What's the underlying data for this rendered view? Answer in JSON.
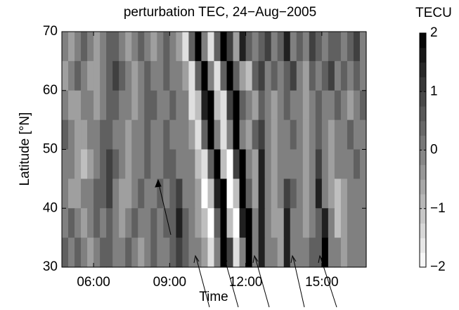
{
  "chart_data": {
    "type": "heatmap",
    "title": "perturbation TEC, 24−Aug−2005",
    "x_label": "Time",
    "y_label": "Latitude [°N]",
    "colorbar_label": "TECU",
    "xlim": [
      4.75,
      16.75
    ],
    "xticks": [
      {
        "value": 6,
        "label": "06:00"
      },
      {
        "value": 9,
        "label": "09:00"
      },
      {
        "value": 12,
        "label": "12:00"
      },
      {
        "value": 15,
        "label": "15:00"
      }
    ],
    "ylim": [
      30,
      70
    ],
    "yticks": [
      30,
      40,
      50,
      60,
      70
    ],
    "clim": [
      -2,
      2
    ],
    "cticks": [
      {
        "value": -2,
        "label": "−2"
      },
      {
        "value": -1,
        "label": "−1"
      },
      0,
      1,
      2
    ],
    "colormap": "gray",
    "x": [
      4.875,
      5.125,
      5.375,
      5.625,
      5.875,
      6.125,
      6.375,
      6.625,
      6.875,
      7.125,
      7.375,
      7.625,
      7.875,
      8.125,
      8.375,
      8.625,
      8.875,
      9.125,
      9.375,
      9.625,
      9.875,
      10.125,
      10.375,
      10.625,
      10.875,
      11.125,
      11.375,
      11.625,
      11.875,
      12.125,
      12.375,
      12.625,
      12.875,
      13.125,
      13.375,
      13.625,
      13.875,
      14.125,
      14.375,
      14.625,
      14.875,
      15.125,
      15.375,
      15.625,
      15.875,
      16.125,
      16.375,
      16.625
    ],
    "y": [
      67.5,
      62.5,
      57.5,
      52.5,
      47.5,
      42.5,
      37.5,
      32.5
    ],
    "z": [
      [
        0,
        -0.5,
        0,
        0.5,
        0,
        -0.5,
        0,
        0.5,
        0.5,
        0,
        -0.5,
        0,
        0.5,
        0,
        -0.5,
        0,
        0.5,
        0,
        -0.5,
        -1.5,
        0.5,
        2,
        0,
        -1.5,
        0.5,
        2,
        1,
        -0.5,
        1.5,
        0.5,
        0,
        0.5,
        1,
        0,
        0.5,
        1.5,
        0,
        0.5,
        0,
        1,
        0.5,
        0,
        0.5,
        0.5,
        0,
        0.5,
        1,
        0
      ],
      [
        -0.5,
        0,
        0.5,
        0,
        -0.5,
        -0.5,
        0,
        0.5,
        1,
        0.5,
        0,
        -0.5,
        0,
        0.5,
        0,
        0,
        0.5,
        0,
        0,
        -0.5,
        -1.5,
        0.5,
        2,
        0,
        -1.5,
        0.5,
        2,
        0.5,
        -0.5,
        -1,
        0.5,
        1,
        0,
        0.5,
        0,
        0.5,
        1,
        0,
        -0.5,
        0.5,
        0,
        0.5,
        1,
        0,
        0.5,
        0,
        0.5,
        0
      ],
      [
        0,
        -0.5,
        -0.5,
        0,
        0,
        -0.5,
        0,
        0.5,
        0.5,
        0,
        0,
        -0.5,
        0,
        0.5,
        0.5,
        0,
        0,
        0.5,
        0,
        0,
        -1.5,
        -1,
        1.5,
        2,
        -1,
        -1.5,
        1,
        2,
        0.5,
        0,
        -0.5,
        0.5,
        0,
        -0.5,
        0,
        0.5,
        0,
        0,
        -0.5,
        0,
        0.5,
        0,
        0,
        0.5,
        0,
        -0.5,
        0,
        0.5
      ],
      [
        0.5,
        0,
        -0.5,
        -0.5,
        0,
        0,
        0.5,
        0.5,
        0,
        0,
        -0.5,
        0,
        0,
        0.5,
        0,
        0,
        0.5,
        0,
        0,
        0,
        -0.5,
        -1.5,
        0.5,
        2,
        0,
        -1.5,
        0,
        2,
        0,
        -0.5,
        0.5,
        1,
        0,
        -0.5,
        0,
        0,
        0.5,
        0,
        -0.5,
        0,
        0.5,
        0,
        -0.5,
        0,
        0,
        0.5,
        0,
        0
      ],
      [
        0,
        0,
        -0.5,
        -1,
        -0.5,
        0,
        0.5,
        1,
        0.5,
        0,
        -0.5,
        0,
        0,
        0.5,
        0,
        0,
        0.5,
        0.5,
        0,
        0,
        0,
        -1,
        -1.5,
        0.5,
        2,
        -1,
        -2,
        1,
        2,
        0,
        -0.5,
        1.5,
        0,
        -0.5,
        0,
        0,
        0,
        0,
        -0.5,
        0,
        1,
        0,
        -0.5,
        0,
        0,
        0,
        0.5,
        0
      ],
      [
        0,
        -0.5,
        -0.5,
        0,
        0,
        0.5,
        0.5,
        1,
        0,
        -0.5,
        -0.5,
        0,
        0.5,
        0,
        0,
        0.5,
        0,
        0.5,
        1,
        0,
        0,
        -0.5,
        -2,
        -1,
        1.5,
        2,
        -2,
        -1,
        2,
        0.5,
        -0.5,
        1.5,
        0,
        -0.5,
        0,
        1,
        0.5,
        0,
        -0.5,
        0,
        1.5,
        0,
        -0.5,
        -1,
        -0.5,
        0,
        0,
        0
      ],
      [
        0,
        0.5,
        0,
        -0.5,
        0,
        0.5,
        0,
        0.5,
        0,
        -0.5,
        0,
        0.5,
        0,
        0,
        0.5,
        0,
        0.5,
        0.5,
        1.5,
        0.5,
        0,
        -0.5,
        -1,
        -2,
        0.5,
        2,
        -1,
        -2,
        1.5,
        2,
        0,
        1.5,
        0,
        -0.5,
        -0.5,
        1.5,
        0,
        0,
        -0.5,
        0,
        0.5,
        1.5,
        0,
        -1,
        -0.5,
        0,
        0,
        0
      ],
      [
        0.5,
        0,
        0.5,
        0,
        -0.5,
        0,
        0.5,
        0.5,
        0,
        0,
        0.5,
        0,
        -0.5,
        0,
        0.5,
        0,
        0,
        0.5,
        1,
        0.5,
        0,
        0,
        -0.5,
        -1.5,
        0,
        2,
        1,
        -1.5,
        0,
        2,
        0,
        1.5,
        0,
        0,
        -0.5,
        1.5,
        0,
        0,
        0,
        0.5,
        0.5,
        2,
        0,
        0,
        -0.5,
        0,
        0,
        0
      ]
    ]
  }
}
